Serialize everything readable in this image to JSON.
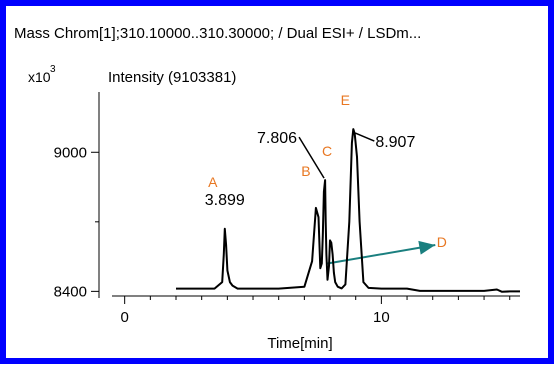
{
  "title": "Mass Chrom[1];310.10000..310.30000; / Dual ESI+ / LSDm...",
  "y_axis": {
    "multiplier_base": "x10",
    "multiplier_exp": "3",
    "label": "Intensity (9103381)"
  },
  "x_axis": {
    "label": "Time[min]"
  },
  "colors": {
    "frame": "#0000ff",
    "trace": "#000000",
    "annotation": "#e87722",
    "arrow": "#1a7f7f"
  },
  "chart_data": {
    "type": "line",
    "title": "Mass Chrom[1];310.10000..310.30000; / Dual ESI+ / LSDm...",
    "xlabel": "Time[min]",
    "ylabel": "Intensity (9103381)",
    "xlim": [
      -1,
      15.4
    ],
    "ylim": [
      8380,
      9260
    ],
    "xticks": [
      0,
      10
    ],
    "yticks": [
      8400,
      9000
    ],
    "grid": false,
    "series": [
      {
        "values_x": [
          2.0,
          3.5,
          3.8,
          3.86,
          3.899,
          3.95,
          4.0,
          4.1,
          4.2,
          4.4,
          5.0,
          6.0,
          7.0,
          7.3,
          7.45,
          7.55,
          7.62,
          7.68,
          7.72,
          7.76,
          7.806,
          7.83,
          7.86,
          7.9,
          7.96,
          8.0,
          8.05,
          8.1,
          8.15,
          8.2,
          8.3,
          8.45,
          8.6,
          8.75,
          8.85,
          8.907,
          8.96,
          9.05,
          9.15,
          9.3,
          9.5,
          10.0,
          11.0,
          11.5,
          12.0,
          13.0,
          14.0,
          14.5,
          14.7,
          15.0,
          15.4
        ],
        "values_y": [
          8412,
          8412,
          8440,
          8560,
          8670,
          8600,
          8490,
          8440,
          8425,
          8412,
          8412,
          8412,
          8420,
          8530,
          8760,
          8720,
          8500,
          8520,
          8640,
          8830,
          8880,
          8700,
          8560,
          8450,
          8510,
          8620,
          8610,
          8560,
          8480,
          8440,
          8420,
          8413,
          8430,
          8700,
          9040,
          9100,
          9080,
          8980,
          8700,
          8440,
          8415,
          8412,
          8412,
          8402,
          8402,
          8402,
          8402,
          8408,
          8398,
          8400,
          8400
        ]
      }
    ],
    "annotations": [
      {
        "text": "3.899",
        "x": 3.899,
        "y": 8670
      },
      {
        "text": "7.806",
        "x": 7.806,
        "y": 8880
      },
      {
        "text": "8.907",
        "x": 8.907,
        "y": 9100
      }
    ],
    "peak_markers": [
      {
        "text": "A",
        "x": 3.899,
        "y": 8670
      },
      {
        "text": "B",
        "x": 7.45,
        "y": 8760
      },
      {
        "text": "C",
        "x": 7.806,
        "y": 8880
      },
      {
        "text": "D",
        "x": 12.2,
        "y": 8600
      },
      {
        "text": "E",
        "x": 8.907,
        "y": 9100
      }
    ],
    "arrow": {
      "from": [
        7.9,
        8520
      ],
      "to": [
        12.1,
        8600
      ]
    }
  }
}
